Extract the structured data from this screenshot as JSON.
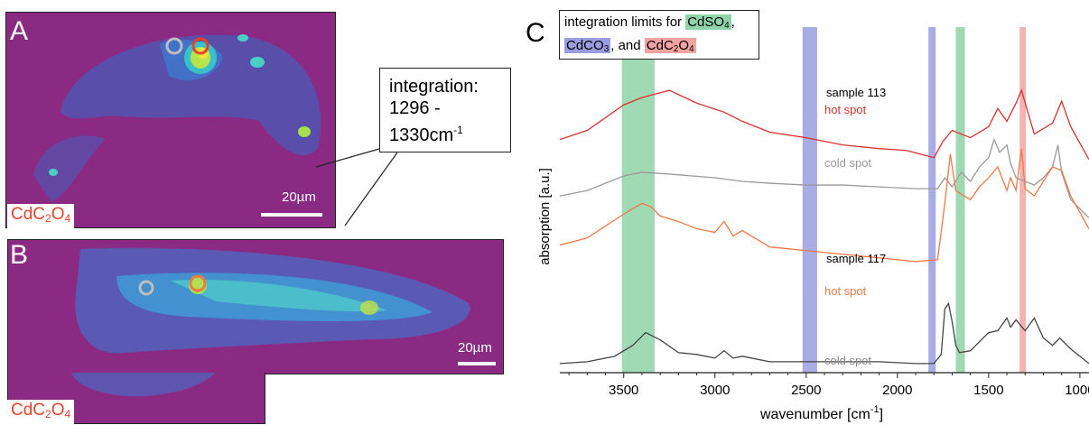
{
  "panels": {
    "A": {
      "letter": "A",
      "compound": {
        "main": "CdC",
        "s1": "2",
        "mid": "O",
        "s2": "4"
      },
      "scale": "20µm"
    },
    "B": {
      "letter": "B",
      "compound": {
        "main": "CdC",
        "s1": "2",
        "mid": "O",
        "s2": "4"
      },
      "scale": "20µm"
    },
    "C": {
      "letter": "C"
    }
  },
  "callout": {
    "line1": "integration:",
    "line2": "1296 -",
    "line3": "1330cm",
    "sup": "-1"
  },
  "legend": {
    "prefix": "integration limits for ",
    "cdso4": {
      "main": "CdSO",
      "sub": "4"
    },
    "cdco3": {
      "main": "CdCO",
      "sub": "3"
    },
    "and": ", and ",
    "cdc2o4": {
      "main": "CdC",
      "s1": "2",
      "mid": "O",
      "s2": "4"
    },
    "comma": ","
  },
  "colors": {
    "map_bg": "#8b2a83",
    "green": "#8fd3a8",
    "blue": "#9a9ee0",
    "red": "#f4a3a3",
    "red_line": "#d9322e",
    "gray_line": "#9a9a9a",
    "orange_line": "#ee7a45",
    "dark_line": "#444444"
  },
  "chart_data": {
    "type": "line",
    "xlabel": "wavenumber [cm",
    "xlabel_sup": "-1",
    "xlabel_end": "]",
    "ylabel": "absorption [a.u.]",
    "xlim": [
      3850,
      950
    ],
    "x_ticks": [
      3500,
      3000,
      2500,
      2000,
      1500,
      1000
    ],
    "x_tick_labels": [
      "3500",
      "3000",
      "2500",
      "2000",
      "1500",
      "1000"
    ],
    "bands": [
      {
        "name": "CdSO4",
        "color": "green",
        "x": [
          3330,
          3510
        ]
      },
      {
        "name": "CdCO3",
        "color": "blue",
        "x": [
          2440,
          2520
        ]
      },
      {
        "name": "CdCO3",
        "color": "blue",
        "x": [
          1790,
          1830
        ]
      },
      {
        "name": "CdSO4",
        "color": "green",
        "x": [
          1630,
          1680
        ]
      },
      {
        "name": "CdC2O4",
        "color": "red",
        "x": [
          1296,
          1330
        ]
      }
    ],
    "annotations": [
      {
        "text": "sample 113",
        "color": "#000000"
      },
      {
        "text": "hot spot",
        "color": "#d9322e"
      },
      {
        "text": "cold spot",
        "color": "#9a9a9a"
      },
      {
        "text": "sample 117",
        "color": "#000000"
      },
      {
        "text": "hot spot",
        "color": "#ee7a45"
      },
      {
        "text": "cold spot",
        "color": "#888888"
      }
    ],
    "series": [
      {
        "color": "red_line",
        "x": [
          3850,
          3700,
          3500,
          3400,
          3250,
          3100,
          2950,
          2850,
          2700,
          2500,
          2300,
          2100,
          1950,
          1800,
          1750,
          1700,
          1600,
          1500,
          1450,
          1400,
          1350,
          1320,
          1250,
          1150,
          1100,
          1050,
          950
        ],
        "y": [
          0.73,
          0.78,
          0.92,
          0.96,
          1.0,
          0.93,
          0.88,
          0.83,
          0.77,
          0.74,
          0.7,
          0.68,
          0.67,
          0.63,
          0.72,
          0.78,
          0.74,
          0.8,
          0.9,
          0.83,
          0.93,
          1.0,
          0.76,
          0.82,
          0.94,
          0.8,
          0.62
        ]
      },
      {
        "color": "gray_line",
        "x": [
          3850,
          3700,
          3500,
          3400,
          3250,
          3000,
          2850,
          2700,
          2500,
          2300,
          2100,
          1900,
          1780,
          1740,
          1700,
          1650,
          1600,
          1550,
          1500,
          1470,
          1440,
          1400,
          1380,
          1350,
          1300,
          1250,
          1200,
          1150,
          1120,
          1100,
          1050,
          950
        ],
        "y": [
          0.42,
          0.45,
          0.53,
          0.55,
          0.54,
          0.52,
          0.5,
          0.49,
          0.48,
          0.48,
          0.47,
          0.46,
          0.46,
          0.52,
          0.47,
          0.55,
          0.5,
          0.58,
          0.63,
          0.73,
          0.66,
          0.7,
          0.6,
          0.52,
          0.5,
          0.48,
          0.52,
          0.58,
          0.7,
          0.55,
          0.4,
          0.3
        ]
      },
      {
        "color": "orange_line",
        "x": [
          3850,
          3700,
          3500,
          3400,
          3350,
          3300,
          3200,
          3100,
          3000,
          2950,
          2900,
          2850,
          2700,
          2500,
          2300,
          2100,
          1900,
          1780,
          1740,
          1710,
          1680,
          1650,
          1600,
          1550,
          1500,
          1450,
          1400,
          1380,
          1350,
          1320,
          1300,
          1250,
          1150,
          1100,
          1050,
          950
        ],
        "y": [
          0.15,
          0.19,
          0.32,
          0.38,
          0.36,
          0.31,
          0.28,
          0.24,
          0.22,
          0.28,
          0.2,
          0.23,
          0.14,
          0.12,
          0.1,
          0.08,
          0.06,
          0.07,
          0.38,
          0.65,
          0.45,
          0.43,
          0.4,
          0.47,
          0.52,
          0.58,
          0.45,
          0.52,
          0.45,
          0.68,
          0.46,
          0.42,
          0.58,
          0.56,
          0.42,
          0.24
        ]
      },
      {
        "color": "dark_line",
        "x": [
          3850,
          3700,
          3550,
          3450,
          3380,
          3300,
          3200,
          3100,
          3000,
          2950,
          2900,
          2850,
          2700,
          2500,
          2300,
          2100,
          1900,
          1800,
          1760,
          1740,
          1720,
          1700,
          1680,
          1660,
          1600,
          1550,
          1500,
          1450,
          1400,
          1380,
          1350,
          1300,
          1250,
          1200,
          1150,
          1110,
          1050,
          950
        ],
        "y": [
          -0.5,
          -0.49,
          -0.46,
          -0.4,
          -0.33,
          -0.37,
          -0.44,
          -0.45,
          -0.47,
          -0.43,
          -0.47,
          -0.46,
          -0.49,
          -0.49,
          -0.49,
          -0.49,
          -0.5,
          -0.5,
          -0.45,
          -0.2,
          -0.17,
          -0.27,
          -0.4,
          -0.44,
          -0.43,
          -0.38,
          -0.33,
          -0.32,
          -0.25,
          -0.3,
          -0.26,
          -0.32,
          -0.25,
          -0.36,
          -0.4,
          -0.36,
          -0.42,
          -0.5
        ]
      }
    ]
  }
}
